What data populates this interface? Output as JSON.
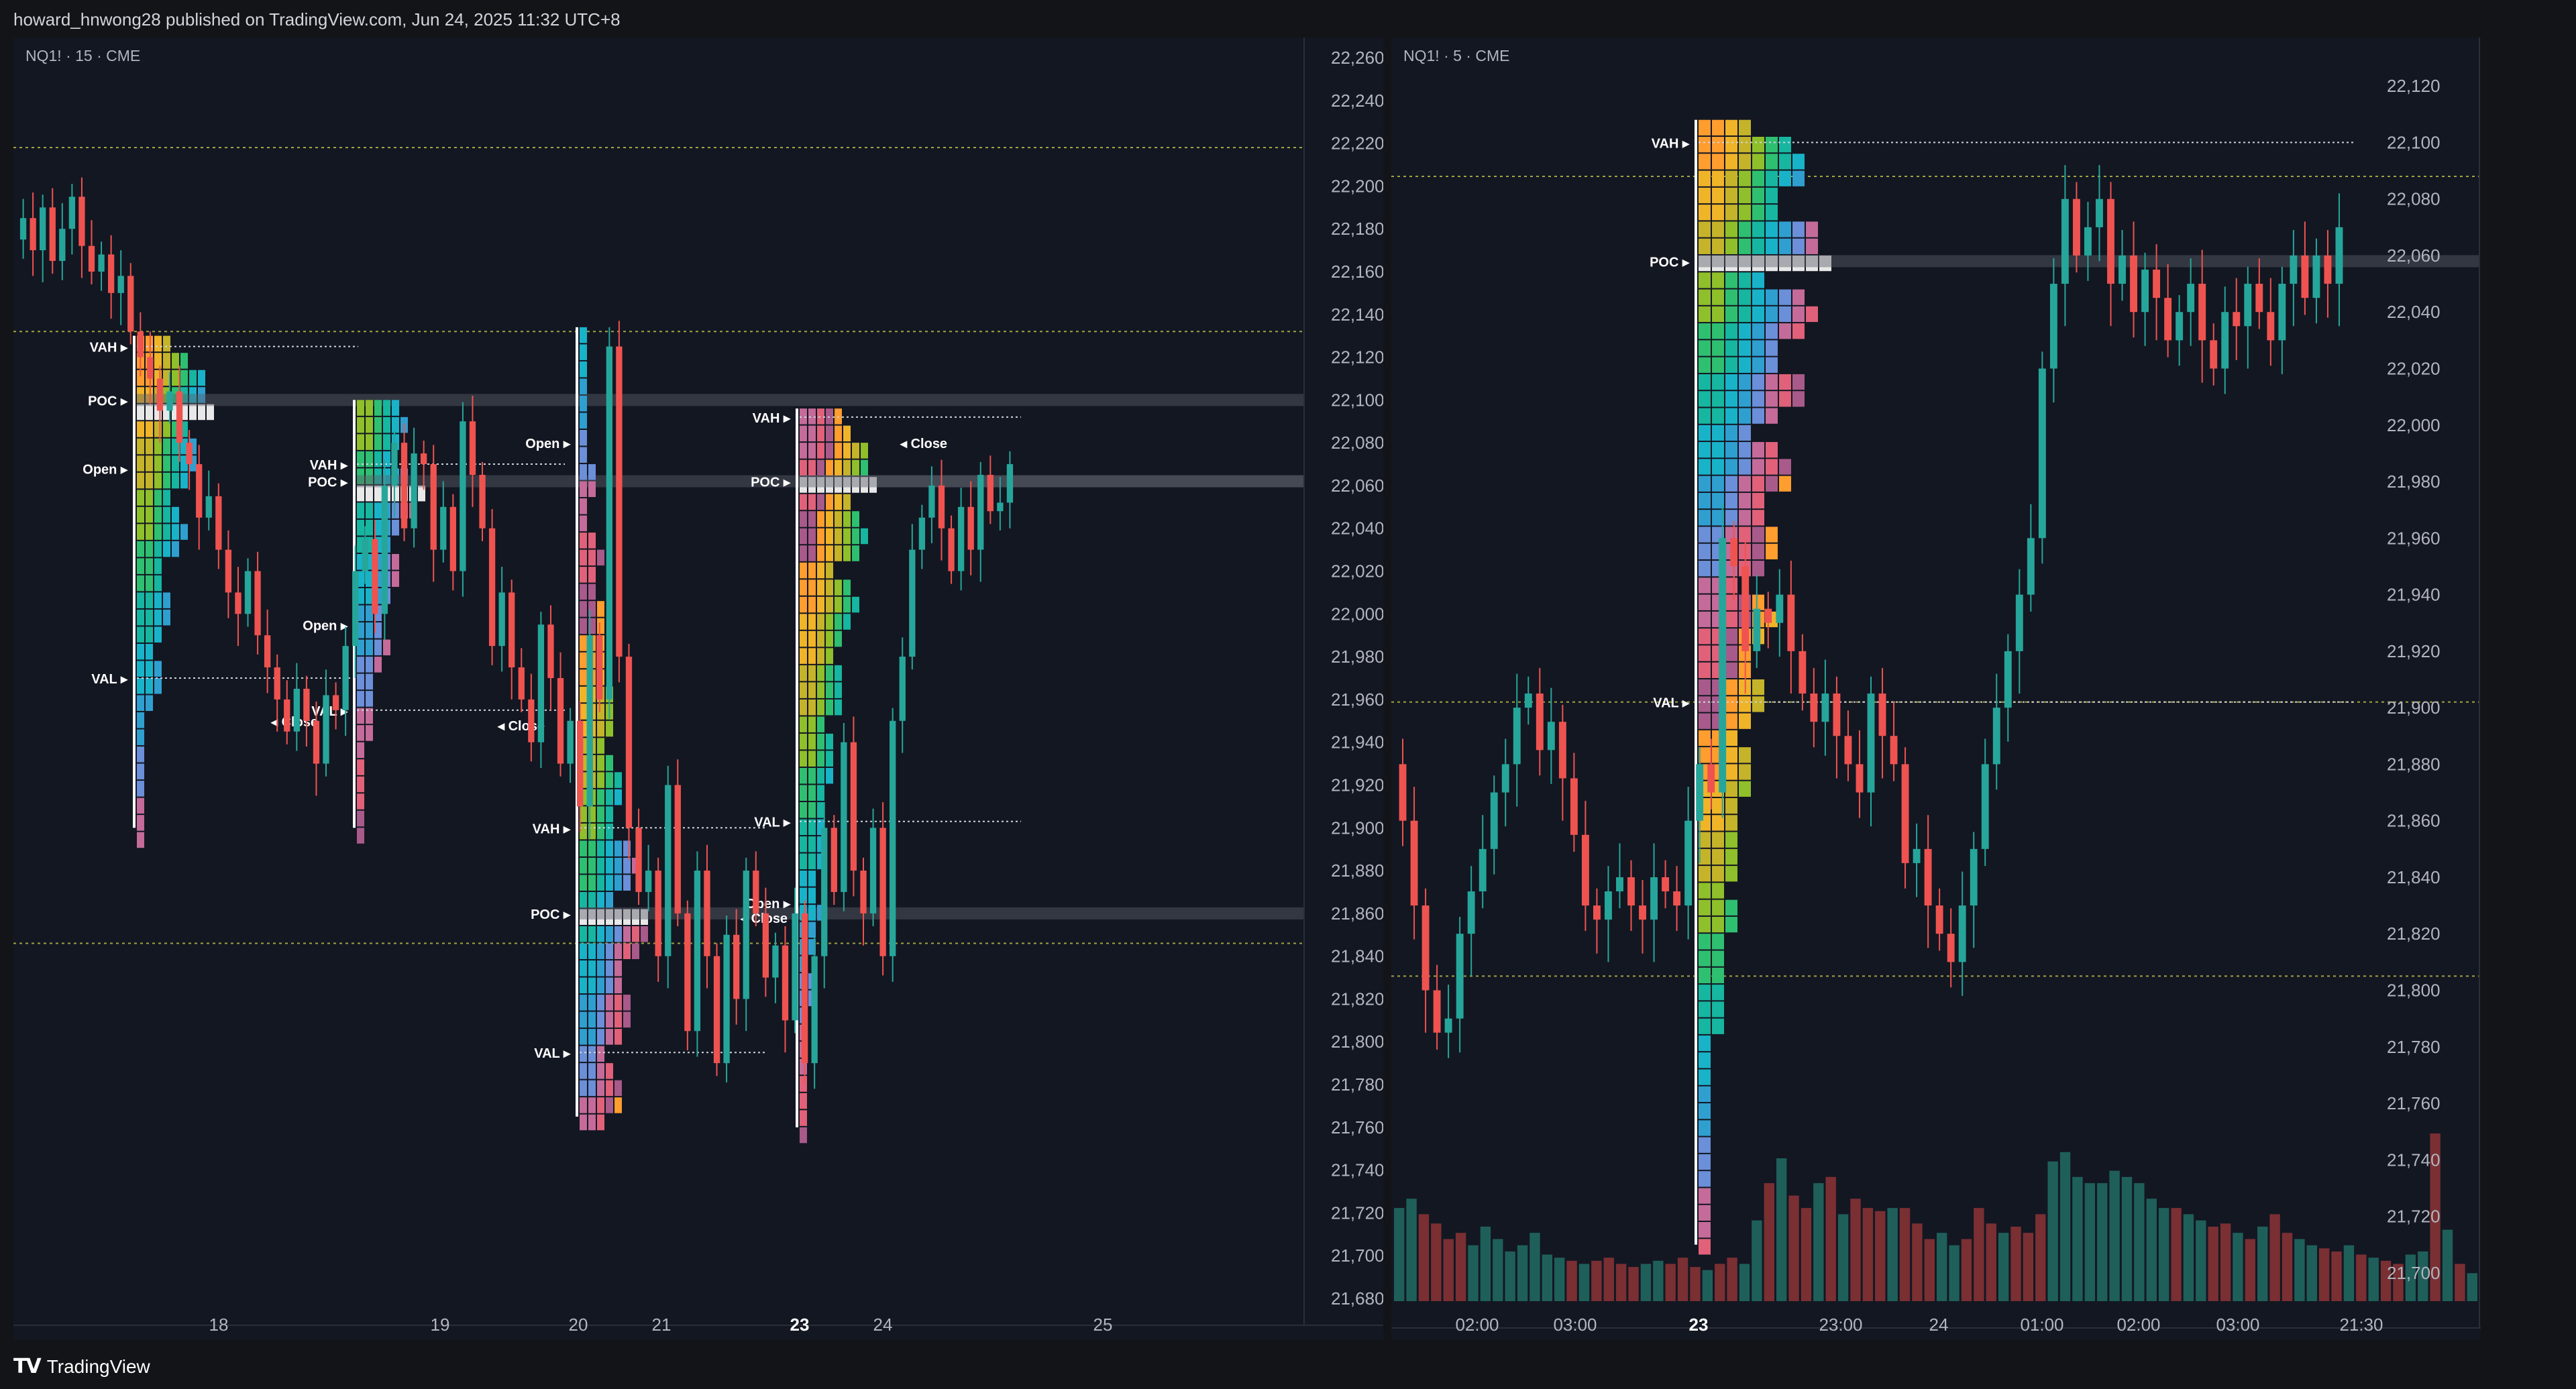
{
  "header": {
    "attribution": "howard_hnwong28 published on TradingView.com, Jun 24, 2025 11:32 UTC+8"
  },
  "footer": {
    "brand": "TradingView",
    "logo_text": "TV"
  },
  "colors": {
    "background": "#131722",
    "up": "#26a69a",
    "down": "#ef5350",
    "poc": "#e8e8e8",
    "level_line": "#d4d44a",
    "profile_palette": [
      "#ff9d2e",
      "#f0b429",
      "#c5b32a",
      "#8fbf2a",
      "#2fbf71",
      "#16b6a0",
      "#19b3c9",
      "#2f9fd0",
      "#6b8fd8",
      "#c46b9a",
      "#e06179",
      "#a85a8a"
    ]
  },
  "chart_data": [
    {
      "type": "line",
      "title": "NQ1! · 15 · CME",
      "symbol_label": "NQ1! · 15 · CME",
      "xlabel": "",
      "ylabel": "",
      "ylim": [
        21680,
        22260
      ],
      "grid": false,
      "y_ticks": [
        "22,260",
        "22,240",
        "22,220",
        "22,200",
        "22,180",
        "22,160",
        "22,140",
        "22,120",
        "22,100",
        "22,080",
        "22,060",
        "22,040",
        "22,020",
        "22,000",
        "21,980",
        "21,960",
        "21,940",
        "21,920",
        "21,900",
        "21,880",
        "21,860",
        "21,840",
        "21,820",
        "21,800",
        "21,780",
        "21,760",
        "21,740",
        "21,720",
        "21,700",
        "21,680"
      ],
      "x_ticks": [
        {
          "label": "18",
          "bold": false
        },
        {
          "label": "19",
          "bold": false
        },
        {
          "label": "20",
          "bold": false
        },
        {
          "label": "21",
          "bold": false
        },
        {
          "label": "23",
          "bold": true
        },
        {
          "label": "24",
          "bold": false
        },
        {
          "label": "25",
          "bold": false
        }
      ],
      "horizontal_levels": [
        22218,
        22132,
        21846
      ],
      "series": [
        {
          "values": [
            22175,
            22185,
            22170,
            22190,
            22165,
            22180,
            22195,
            22172,
            22160,
            22168,
            22150,
            22158,
            22132,
            22120,
            22110,
            22095,
            22104,
            22080,
            22070,
            22045,
            22055,
            22030,
            22010,
            22000,
            22020,
            21990,
            21975,
            21960,
            21945,
            21965,
            21950,
            21930,
            21962,
            21955,
            21985,
            22020,
            22035,
            22000,
            22060,
            22080,
            22040,
            22075,
            22070,
            22030,
            22050,
            22020,
            22090,
            22065,
            22040,
            21985,
            22010,
            21975,
            21960,
            21940,
            21995,
            21970,
            21930,
            21950,
            21910,
            21990,
            21960,
            22125,
            21980,
            21900,
            21870,
            21880,
            21840,
            21920,
            21860,
            21805,
            21880,
            21840,
            21790,
            21850,
            21820,
            21880,
            21860,
            21830,
            21845,
            21810,
            21860,
            21790,
            21840,
            21900,
            21870,
            21940,
            21880,
            21860,
            21900,
            21840,
            21950,
            21980,
            22030,
            22045,
            22060,
            22040,
            22020,
            22050,
            22030,
            22065,
            22048,
            22052,
            22070
          ]
        }
      ],
      "profiles": [
        {
          "vah": 22125,
          "poc": 22100,
          "val": 21970,
          "open": 22068,
          "close": 21950,
          "top": 22130,
          "bottom": 21900
        },
        {
          "vah": 22070,
          "poc": 22062,
          "val": 21955,
          "open": 21995,
          "close": 21948,
          "top": 22100,
          "bottom": 21900
        },
        {
          "vah": 21900,
          "poc": 21860,
          "val": 21795,
          "open": 22080,
          "close": 21858,
          "top": 22134,
          "bottom": 21765
        },
        {
          "vah": 22092,
          "poc": 22062,
          "val": 21903,
          "open": 21865,
          "close": 22080,
          "top": 22096,
          "bottom": 21760
        }
      ],
      "profile_labels": {
        "vah": "VAH",
        "poc": "POC",
        "val": "VAL",
        "open": "Open",
        "close": "Close"
      }
    },
    {
      "type": "line",
      "title": "NQ1! · 5 · CME",
      "symbol_label": "NQ1! · 5 · CME",
      "xlabel": "",
      "ylabel": "",
      "ylim": [
        21690,
        22130
      ],
      "grid": false,
      "y_ticks": [
        "22,120",
        "22,100",
        "22,080",
        "22,060",
        "22,040",
        "22,020",
        "22,000",
        "21,980",
        "21,960",
        "21,940",
        "21,920",
        "21,900",
        "21,880",
        "21,860",
        "21,840",
        "21,820",
        "21,800",
        "21,780",
        "21,760",
        "21,740",
        "21,720",
        "21,700"
      ],
      "x_ticks": [
        {
          "label": "02:00",
          "bold": false
        },
        {
          "label": "03:00",
          "bold": false
        },
        {
          "label": "23",
          "bold": true
        },
        {
          "label": "23:00",
          "bold": false
        },
        {
          "label": "24",
          "bold": false
        },
        {
          "label": "01:00",
          "bold": false
        },
        {
          "label": "02:00",
          "bold": false
        },
        {
          "label": "03:00",
          "bold": false
        },
        {
          "label": "21:30",
          "bold": false
        }
      ],
      "horizontal_levels": [
        22088,
        21902,
        21805
      ],
      "series": [
        {
          "values": [
            21880,
            21860,
            21830,
            21800,
            21785,
            21790,
            21820,
            21835,
            21850,
            21870,
            21880,
            21900,
            21905,
            21885,
            21895,
            21875,
            21855,
            21830,
            21825,
            21835,
            21840,
            21830,
            21825,
            21840,
            21835,
            21830,
            21860,
            21880,
            21870,
            21960,
            21950,
            21920,
            21935,
            21930,
            21940,
            21920,
            21905,
            21895,
            21905,
            21890,
            21880,
            21870,
            21905,
            21890,
            21880,
            21845,
            21850,
            21830,
            21820,
            21810,
            21830,
            21850,
            21880,
            21900,
            21920,
            21940,
            21960,
            22020,
            22050,
            22080,
            22060,
            22070,
            22080,
            22050,
            22060,
            22040,
            22055,
            22045,
            22030,
            22040,
            22050,
            22030,
            22020,
            22040,
            22035,
            22050,
            22040,
            22030,
            22050,
            22060,
            22045,
            22060,
            22050,
            22070
          ]
        }
      ],
      "volume": [
        30,
        33,
        28,
        25,
        20,
        22,
        18,
        24,
        20,
        16,
        18,
        22,
        15,
        14,
        13,
        12,
        13,
        14,
        12,
        11,
        12,
        13,
        12,
        14,
        11,
        10,
        12,
        14,
        12,
        26,
        38,
        46,
        34,
        30,
        38,
        40,
        28,
        33,
        30,
        29,
        30,
        30,
        25,
        20,
        22,
        18,
        20,
        30,
        25,
        22,
        24,
        22,
        28,
        45,
        48,
        40,
        38,
        38,
        42,
        40,
        38,
        33,
        30,
        30,
        28,
        26,
        24,
        25,
        22,
        20,
        24,
        28,
        22,
        20,
        18,
        17,
        16,
        18,
        15,
        14,
        13,
        12,
        15,
        16,
        54,
        23,
        12,
        9
      ],
      "profiles": [
        {
          "vah": 22100,
          "poc": 22058,
          "val": 21902,
          "top": 22108,
          "bottom": 21710
        }
      ],
      "profile_labels": {
        "vah": "VAH",
        "poc": "POC",
        "val": "VAL"
      }
    }
  ]
}
